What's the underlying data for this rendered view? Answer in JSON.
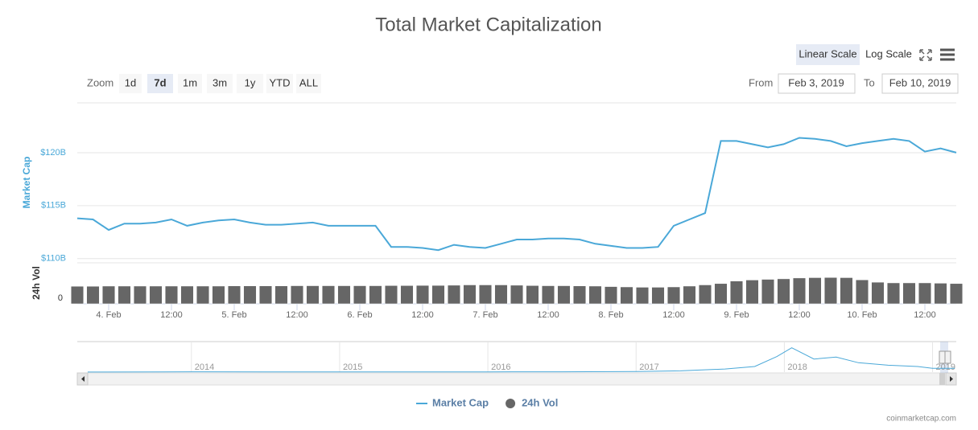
{
  "toolbar": {
    "scale_buttons": [
      "Linear Scale",
      "Log Scale"
    ],
    "active_scale": 0,
    "zoom_label": "Zoom",
    "zoom_buttons": [
      "1d",
      "7d",
      "1m",
      "3m",
      "1y",
      "YTD",
      "ALL"
    ],
    "active_zoom": 1,
    "from_label": "From",
    "from": "Feb 3, 2019",
    "to_label": "To",
    "to": "Feb 10, 2019"
  },
  "credit": "coinmarketcap.com",
  "chart_data": {
    "type": "line",
    "title": "Total Market Capitalization",
    "ylabel": "Market Cap",
    "y2label": "24h Vol",
    "grid": true,
    "legend": "bottom",
    "x": [
      "2019-02-03T18:00",
      "2019-02-03T21:00",
      "2019-02-04T00:00",
      "2019-02-04T03:00",
      "2019-02-04T06:00",
      "2019-02-04T09:00",
      "2019-02-04T12:00",
      "2019-02-04T15:00",
      "2019-02-04T18:00",
      "2019-02-04T21:00",
      "2019-02-05T00:00",
      "2019-02-05T03:00",
      "2019-02-05T06:00",
      "2019-02-05T09:00",
      "2019-02-05T12:00",
      "2019-02-05T15:00",
      "2019-02-05T18:00",
      "2019-02-05T21:00",
      "2019-02-06T00:00",
      "2019-02-06T03:00",
      "2019-02-06T06:00",
      "2019-02-06T09:00",
      "2019-02-06T12:00",
      "2019-02-06T15:00",
      "2019-02-06T18:00",
      "2019-02-06T21:00",
      "2019-02-07T00:00",
      "2019-02-07T03:00",
      "2019-02-07T06:00",
      "2019-02-07T09:00",
      "2019-02-07T12:00",
      "2019-02-07T15:00",
      "2019-02-07T18:00",
      "2019-02-07T21:00",
      "2019-02-08T00:00",
      "2019-02-08T03:00",
      "2019-02-08T06:00",
      "2019-02-08T09:00",
      "2019-02-08T12:00",
      "2019-02-08T15:00",
      "2019-02-08T18:00",
      "2019-02-08T21:00",
      "2019-02-09T00:00",
      "2019-02-09T03:00",
      "2019-02-09T06:00",
      "2019-02-09T09:00",
      "2019-02-09T12:00",
      "2019-02-09T15:00",
      "2019-02-09T18:00",
      "2019-02-09T21:00",
      "2019-02-10T00:00",
      "2019-02-10T03:00",
      "2019-02-10T06:00",
      "2019-02-10T09:00",
      "2019-02-10T12:00",
      "2019-02-10T15:00",
      "2019-02-10T18:00"
    ],
    "xlim": [
      "2019-02-03T18:00",
      "2019-02-10T18:00"
    ],
    "xticks": [
      {
        "value": "2019-02-04T00:00",
        "label": "4. Feb"
      },
      {
        "value": "2019-02-04T12:00",
        "label": "12:00"
      },
      {
        "value": "2019-02-05T00:00",
        "label": "5. Feb"
      },
      {
        "value": "2019-02-05T12:00",
        "label": "12:00"
      },
      {
        "value": "2019-02-06T00:00",
        "label": "6. Feb"
      },
      {
        "value": "2019-02-06T12:00",
        "label": "12:00"
      },
      {
        "value": "2019-02-07T00:00",
        "label": "7. Feb"
      },
      {
        "value": "2019-02-07T12:00",
        "label": "12:00"
      },
      {
        "value": "2019-02-08T00:00",
        "label": "8. Feb"
      },
      {
        "value": "2019-02-08T12:00",
        "label": "12:00"
      },
      {
        "value": "2019-02-09T00:00",
        "label": "9. Feb"
      },
      {
        "value": "2019-02-09T12:00",
        "label": "12:00"
      },
      {
        "value": "2019-02-10T00:00",
        "label": "10. Feb"
      },
      {
        "value": "2019-02-10T12:00",
        "label": "12:00"
      }
    ],
    "ylim": [
      109.6,
      124.7
    ],
    "yticks": [
      {
        "value": 110,
        "label": "$110B"
      },
      {
        "value": 115,
        "label": "$115B"
      },
      {
        "value": 120,
        "label": "$120B"
      }
    ],
    "y2lim": [
      0,
      40
    ],
    "y2ticks": [
      0
    ],
    "series": [
      {
        "name": "Market Cap",
        "color": "#4aa8d8",
        "values": [
          113.8,
          113.7,
          112.7,
          113.3,
          113.3,
          113.4,
          113.7,
          113.1,
          113.4,
          113.6,
          113.7,
          113.4,
          113.2,
          113.2,
          113.3,
          113.4,
          113.1,
          113.1,
          113.1,
          113.1,
          111.1,
          111.1,
          111.0,
          110.8,
          111.3,
          111.1,
          111.0,
          111.4,
          111.8,
          111.8,
          111.9,
          111.9,
          111.8,
          111.4,
          111.2,
          111.0,
          111.0,
          111.1,
          113.1,
          113.7,
          114.3,
          121.1,
          121.1,
          120.8,
          120.5,
          120.8,
          121.4,
          121.3,
          121.1,
          120.6,
          120.9,
          121.1,
          121.3,
          121.1,
          120.1,
          120.4,
          120.0
        ]
      },
      {
        "name": "24h Vol",
        "color": "#666666",
        "axis": "y2",
        "type": "bar",
        "values": [
          20.8,
          20.8,
          21.0,
          21.0,
          21.0,
          21.0,
          21.0,
          21.0,
          21.0,
          21.0,
          21.2,
          21.2,
          21.2,
          21.2,
          21.4,
          21.4,
          21.4,
          21.4,
          21.4,
          21.4,
          21.6,
          21.6,
          21.8,
          21.8,
          22.0,
          22.4,
          22.4,
          22.4,
          22.0,
          21.6,
          21.4,
          21.4,
          21.2,
          21.0,
          20.4,
          20.0,
          19.6,
          19.6,
          20.0,
          21.0,
          22.4,
          24.0,
          27.0,
          28.2,
          29.0,
          29.6,
          30.6,
          31.0,
          31.2,
          31.0,
          28.4,
          25.6,
          24.8,
          24.8,
          24.8,
          24.4,
          24.0
        ]
      }
    ],
    "navigator": {
      "x": [
        2013.3,
        2013.8,
        2014.0,
        2014.5,
        2015.0,
        2015.5,
        2016.0,
        2016.5,
        2017.0,
        2017.3,
        2017.6,
        2017.8,
        2017.95,
        2018.05,
        2018.2,
        2018.35,
        2018.5,
        2018.7,
        2018.9,
        2019.0,
        2019.15
      ],
      "values": [
        1.5,
        8,
        10,
        8,
        5,
        4,
        7,
        9,
        18,
        40,
        100,
        180,
        500,
        780,
        420,
        480,
        300,
        220,
        180,
        120,
        120
      ],
      "xlim": [
        2013.23,
        2019.16
      ],
      "xticks": [
        2014,
        2015,
        2016,
        2017,
        2018,
        2019
      ],
      "ylim": [
        0,
        900
      ]
    }
  }
}
